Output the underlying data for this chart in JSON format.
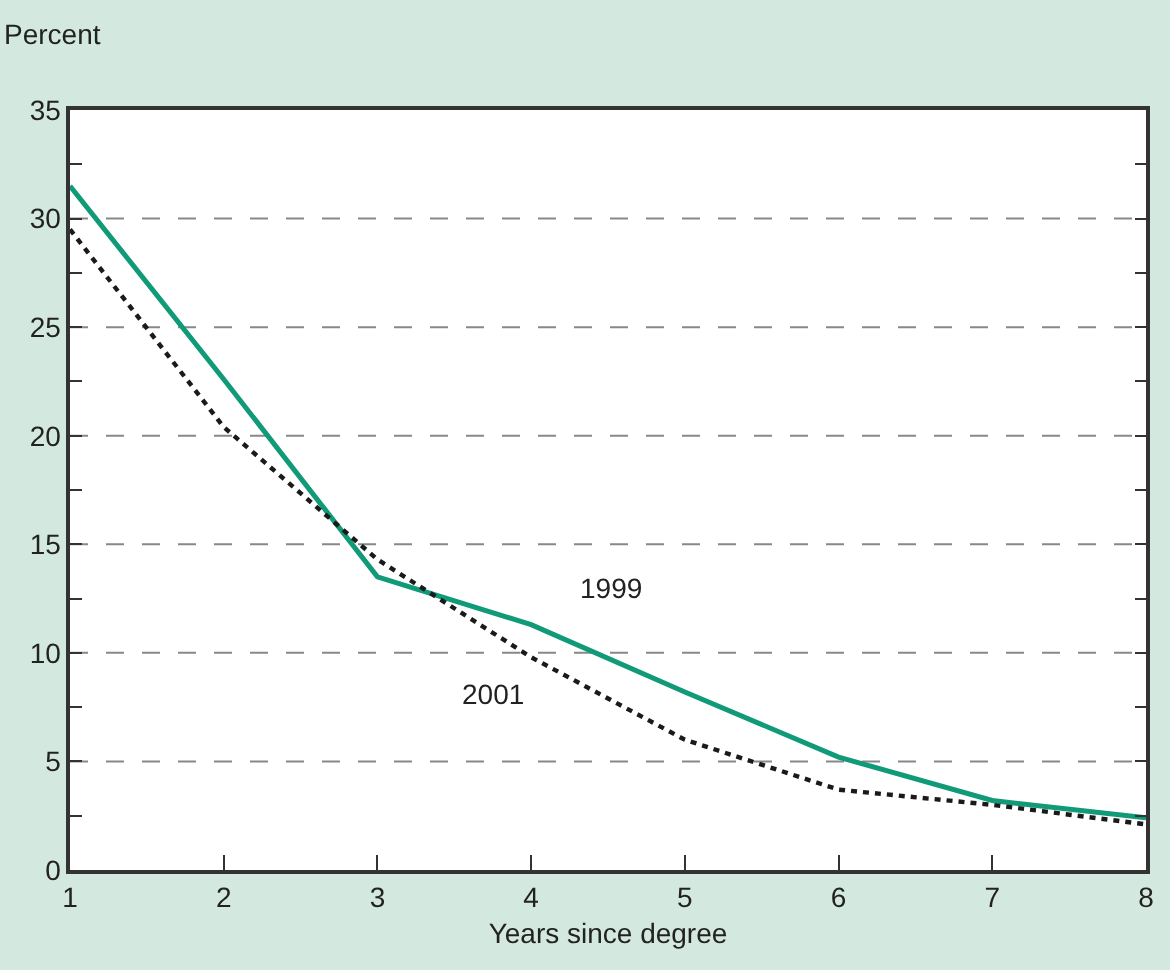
{
  "chart_data": {
    "type": "line",
    "ylabel": "Percent",
    "xlabel": "Years since degree",
    "x": [
      1,
      2,
      3,
      4,
      5,
      6,
      7,
      8
    ],
    "series": [
      {
        "name": "1999",
        "color": "#119a78",
        "line_style": "solid",
        "values": [
          31.5,
          22.6,
          13.5,
          11.3,
          8.2,
          5.2,
          3.2,
          2.4
        ]
      },
      {
        "name": "2001",
        "color": "#1a1a1a",
        "line_style": "dotted",
        "values": [
          29.5,
          20.4,
          14.3,
          9.8,
          6.0,
          3.7,
          3.0,
          2.1
        ]
      }
    ],
    "xlim": [
      1,
      8
    ],
    "xticks": [
      1,
      2,
      3,
      4,
      5,
      6,
      7,
      8
    ],
    "ylim": [
      0,
      35
    ],
    "yticks": [
      0,
      {
        "value": 2.5,
        "label": null
      },
      5,
      {
        "value": 7.5,
        "label": null
      },
      10,
      {
        "value": 12.5,
        "label": null
      },
      15,
      {
        "value": 17.5,
        "label": null
      },
      20,
      {
        "value": 22.5,
        "label": null
      },
      25,
      {
        "value": 27.5,
        "label": null
      },
      30,
      {
        "value": 32.5,
        "label": null
      },
      35
    ],
    "grid": "y",
    "legend": false,
    "marker": "none"
  }
}
